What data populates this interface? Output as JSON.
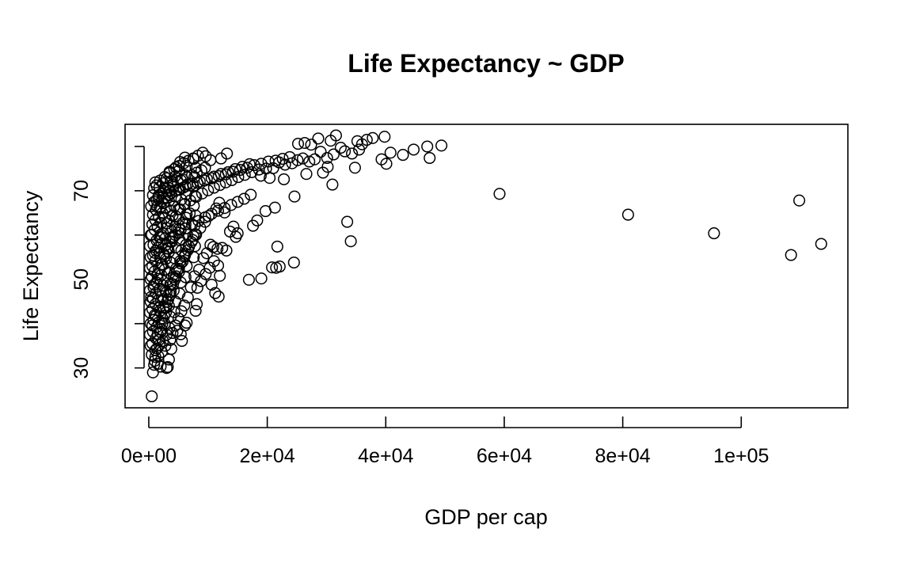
{
  "chart_data": {
    "type": "scatter",
    "title": "Life Expectancy ~ GDP",
    "xlabel": "GDP per cap",
    "ylabel": "Life Expectancy",
    "xlim": [
      -4000,
      118000
    ],
    "ylim": [
      21,
      85
    ],
    "x_ticks": [
      0,
      20000,
      40000,
      60000,
      80000,
      100000
    ],
    "x_tick_labels": [
      "0e+00",
      "2e+04",
      "4e+04",
      "6e+04",
      "8e+04",
      "1e+05"
    ],
    "y_ticks": [
      30,
      40,
      50,
      60,
      70,
      80
    ],
    "y_tick_labels": [
      "30",
      "",
      "50",
      "",
      "70",
      ""
    ],
    "grid": false,
    "legend": "none",
    "marker": "open-circle",
    "colors": {
      "point": "#000000",
      "frame": "#000000"
    },
    "points": [
      [
        59200,
        69.3
      ],
      [
        80900,
        64.6
      ],
      [
        95400,
        60.4
      ],
      [
        108400,
        55.5
      ],
      [
        109800,
        67.8
      ],
      [
        113500,
        58.0
      ],
      [
        33500,
        63.0
      ],
      [
        34100,
        58.6
      ],
      [
        24500,
        53.8
      ],
      [
        24600,
        68.7
      ],
      [
        31000,
        71.4
      ],
      [
        47000,
        80.0
      ],
      [
        47400,
        77.4
      ],
      [
        49400,
        80.2
      ],
      [
        44700,
        79.3
      ],
      [
        42900,
        78.1
      ],
      [
        40800,
        78.6
      ],
      [
        40100,
        76.1
      ],
      [
        39300,
        77.1
      ],
      [
        36000,
        80.5
      ],
      [
        35500,
        79.3
      ],
      [
        34300,
        78.4
      ],
      [
        33100,
        78.9
      ],
      [
        32400,
        79.7
      ],
      [
        31200,
        78.2
      ],
      [
        30100,
        77.4
      ],
      [
        29000,
        78.8
      ],
      [
        28000,
        77.1
      ],
      [
        27100,
        76.6
      ],
      [
        26000,
        77.3
      ],
      [
        25100,
        76.9
      ],
      [
        24200,
        76.2
      ],
      [
        23000,
        75.9
      ],
      [
        22000,
        76.4
      ],
      [
        21000,
        75.1
      ],
      [
        39800,
        82.2
      ],
      [
        37800,
        81.9
      ],
      [
        36800,
        81.5
      ],
      [
        35200,
        81.2
      ],
      [
        31600,
        82.5
      ],
      [
        30700,
        81.3
      ],
      [
        28600,
        81.8
      ],
      [
        27400,
        80.4
      ],
      [
        26300,
        80.8
      ],
      [
        25200,
        80.6
      ],
      [
        34800,
        75.2
      ],
      [
        30200,
        75.4
      ],
      [
        29400,
        74.1
      ],
      [
        26600,
        73.8
      ],
      [
        22800,
        72.6
      ],
      [
        20400,
        72.9
      ],
      [
        18900,
        73.4
      ],
      [
        21300,
        66.2
      ],
      [
        19700,
        65.4
      ],
      [
        18300,
        63.3
      ],
      [
        17600,
        62.1
      ],
      [
        21500,
        52.6
      ],
      [
        22100,
        52.9
      ],
      [
        20800,
        52.7
      ],
      [
        19000,
        50.2
      ],
      [
        16900,
        49.9
      ],
      [
        21700,
        57.4
      ],
      [
        15000,
        60.4
      ],
      [
        14700,
        59.6
      ],
      [
        14300,
        61.9
      ],
      [
        13700,
        60.8
      ],
      [
        13100,
        56.5
      ],
      [
        12400,
        57.1
      ],
      [
        11600,
        56.9
      ],
      [
        11000,
        54.1
      ],
      [
        10300,
        52.6
      ],
      [
        9600,
        51.2
      ],
      [
        8800,
        49.6
      ],
      [
        8200,
        48.1
      ],
      [
        11800,
        46.1
      ],
      [
        11200,
        46.9
      ],
      [
        10600,
        48.8
      ],
      [
        8100,
        44.4
      ],
      [
        7900,
        42.9
      ],
      [
        6400,
        40.2
      ],
      [
        6100,
        39.6
      ],
      [
        5400,
        37.6
      ],
      [
        4800,
        38.4
      ],
      [
        5600,
        36.1
      ],
      [
        3800,
        34.3
      ],
      [
        3400,
        31.9
      ],
      [
        3200,
        30.2
      ],
      [
        500,
        23.6
      ],
      [
        12000,
        50.8
      ],
      [
        11700,
        53.1
      ],
      [
        10900,
        57.3
      ],
      [
        10400,
        57.8
      ],
      [
        9800,
        55.9
      ],
      [
        9200,
        54.8
      ],
      [
        8500,
        52.2
      ],
      [
        7700,
        50.7
      ],
      [
        7100,
        48.2
      ],
      [
        6600,
        45.9
      ],
      [
        6000,
        44.1
      ],
      [
        5500,
        42.8
      ],
      [
        5000,
        41.2
      ],
      [
        4500,
        39.6
      ],
      [
        4000,
        37.9
      ],
      [
        3600,
        36.3
      ],
      [
        11400,
        66.0
      ],
      [
        11900,
        67.3
      ],
      [
        12800,
        65.1
      ],
      [
        10100,
        64.3
      ],
      [
        9500,
        63.0
      ],
      [
        8700,
        61.6
      ],
      [
        8000,
        60.1
      ],
      [
        7400,
        58.9
      ],
      [
        6800,
        57.4
      ],
      [
        6200,
        55.8
      ],
      [
        5700,
        54.0
      ],
      [
        5100,
        52.4
      ],
      [
        4600,
        50.7
      ],
      [
        4100,
        48.9
      ],
      [
        3700,
        47.2
      ],
      [
        3300,
        45.5
      ],
      [
        2900,
        43.6
      ],
      [
        2600,
        41.8
      ],
      [
        2300,
        40.0
      ],
      [
        2000,
        38.1
      ],
      [
        1700,
        36.3
      ],
      [
        1400,
        34.4
      ],
      [
        1100,
        32.5
      ],
      [
        900,
        30.7
      ],
      [
        700,
        29.0
      ],
      [
        19800,
        75.0
      ],
      [
        18600,
        74.8
      ],
      [
        17400,
        74.2
      ],
      [
        16200,
        73.6
      ],
      [
        15100,
        73.1
      ],
      [
        14000,
        72.4
      ],
      [
        13000,
        71.9
      ],
      [
        12000,
        71.3
      ],
      [
        11000,
        70.7
      ],
      [
        10000,
        70.1
      ],
      [
        9000,
        69.4
      ],
      [
        8000,
        68.6
      ],
      [
        7000,
        67.8
      ],
      [
        6000,
        66.9
      ],
      [
        5000,
        65.8
      ],
      [
        4000,
        64.4
      ],
      [
        3000,
        62.6
      ],
      [
        2000,
        60.1
      ],
      [
        1000,
        56.0
      ],
      [
        17000,
        76.0
      ],
      [
        15800,
        75.4
      ],
      [
        14600,
        74.9
      ],
      [
        13400,
        74.2
      ],
      [
        12200,
        73.8
      ],
      [
        11000,
        73.2
      ],
      [
        9800,
        72.7
      ],
      [
        8600,
        72.1
      ],
      [
        7400,
        71.6
      ],
      [
        6200,
        71.0
      ],
      [
        5000,
        70.3
      ],
      [
        3800,
        69.5
      ],
      [
        2600,
        68.2
      ],
      [
        1400,
        66.4
      ],
      [
        23800,
        77.6
      ],
      [
        22600,
        77.2
      ],
      [
        21400,
        76.8
      ],
      [
        20200,
        76.6
      ],
      [
        19000,
        76.1
      ],
      [
        17800,
        75.8
      ],
      [
        16600,
        75.2
      ],
      [
        15400,
        74.7
      ],
      [
        14200,
        74.3
      ],
      [
        13000,
        73.7
      ],
      [
        11800,
        73.3
      ],
      [
        10600,
        72.8
      ],
      [
        9400,
        72.3
      ],
      [
        8200,
        71.8
      ],
      [
        7000,
        71.2
      ],
      [
        5800,
        70.7
      ],
      [
        4600,
        70.1
      ],
      [
        3400,
        69.0
      ],
      [
        2200,
        67.6
      ],
      [
        9100,
        78.6
      ],
      [
        8300,
        77.9
      ],
      [
        7500,
        77.3
      ],
      [
        6700,
        76.8
      ],
      [
        5900,
        76.2
      ],
      [
        5100,
        75.6
      ],
      [
        4300,
        74.9
      ],
      [
        3500,
        74.0
      ],
      [
        2700,
        73.1
      ],
      [
        1900,
        72.3
      ],
      [
        1300,
        71.2
      ],
      [
        13200,
        78.4
      ],
      [
        12200,
        77.3
      ],
      [
        10400,
        76.9
      ],
      [
        9600,
        77.8
      ],
      [
        9500,
        75.2
      ],
      [
        8900,
        74.6
      ],
      [
        8100,
        74.1
      ],
      [
        7300,
        73.5
      ],
      [
        6500,
        73.0
      ],
      [
        5700,
        72.6
      ],
      [
        4900,
        72.0
      ],
      [
        4100,
        71.4
      ],
      [
        3300,
        70.7
      ],
      [
        2500,
        70.0
      ],
      [
        1700,
        69.0
      ],
      [
        900,
        67.5
      ],
      [
        17200,
        69.1
      ],
      [
        16100,
        68.2
      ],
      [
        15000,
        67.5
      ],
      [
        13900,
        66.8
      ],
      [
        12800,
        66.1
      ],
      [
        11700,
        65.5
      ],
      [
        10600,
        64.8
      ],
      [
        9500,
        64.0
      ],
      [
        8400,
        63.2
      ],
      [
        7300,
        62.4
      ],
      [
        6200,
        61.5
      ],
      [
        5100,
        60.5
      ],
      [
        4000,
        59.3
      ],
      [
        2900,
        57.8
      ],
      [
        1800,
        55.9
      ],
      [
        7800,
        60.2
      ],
      [
        7200,
        58.4
      ],
      [
        6600,
        56.6
      ],
      [
        6000,
        55.1
      ],
      [
        5400,
        53.6
      ],
      [
        4800,
        52.0
      ],
      [
        4200,
        50.5
      ],
      [
        3600,
        48.8
      ],
      [
        3000,
        47.1
      ],
      [
        2400,
        45.4
      ],
      [
        1800,
        43.6
      ],
      [
        1200,
        41.7
      ],
      [
        600,
        39.6
      ],
      [
        6900,
        64.9
      ],
      [
        6300,
        63.9
      ],
      [
        5700,
        62.7
      ],
      [
        5100,
        61.4
      ],
      [
        4500,
        60.0
      ],
      [
        3900,
        58.5
      ],
      [
        3300,
        56.9
      ],
      [
        2700,
        55.2
      ],
      [
        2100,
        53.3
      ],
      [
        1500,
        51.2
      ],
      [
        900,
        48.8
      ],
      [
        400,
        46.0
      ],
      [
        500,
        33.0
      ],
      [
        600,
        35.5
      ],
      [
        700,
        38.2
      ],
      [
        800,
        40.8
      ],
      [
        600,
        43.3
      ],
      [
        700,
        45.7
      ],
      [
        800,
        48.2
      ],
      [
        500,
        50.6
      ],
      [
        600,
        53.0
      ],
      [
        700,
        55.4
      ],
      [
        800,
        57.8
      ],
      [
        500,
        60.1
      ],
      [
        600,
        62.4
      ],
      [
        700,
        64.6
      ],
      [
        400,
        66.5
      ],
      [
        1000,
        31.6
      ],
      [
        1100,
        34.0
      ],
      [
        1200,
        36.7
      ],
      [
        1300,
        39.2
      ],
      [
        1000,
        41.9
      ],
      [
        1100,
        44.4
      ],
      [
        1200,
        46.9
      ],
      [
        1300,
        49.3
      ],
      [
        1000,
        51.8
      ],
      [
        1100,
        54.2
      ],
      [
        1200,
        56.5
      ],
      [
        1300,
        58.8
      ],
      [
        1000,
        61.2
      ],
      [
        1100,
        63.4
      ],
      [
        1200,
        65.7
      ],
      [
        1300,
        67.9
      ],
      [
        1600,
        32.7
      ],
      [
        1800,
        35.2
      ],
      [
        1500,
        37.7
      ],
      [
        1700,
        40.3
      ],
      [
        1900,
        42.9
      ],
      [
        1600,
        45.3
      ],
      [
        1800,
        47.7
      ],
      [
        1500,
        50.1
      ],
      [
        1700,
        52.5
      ],
      [
        1900,
        54.9
      ],
      [
        1600,
        57.2
      ],
      [
        1800,
        59.5
      ],
      [
        1500,
        61.8
      ],
      [
        1700,
        64.0
      ],
      [
        1900,
        66.3
      ],
      [
        1600,
        68.6
      ],
      [
        1800,
        70.8
      ],
      [
        2200,
        33.6
      ],
      [
        2400,
        36.1
      ],
      [
        2100,
        38.7
      ],
      [
        2300,
        41.2
      ],
      [
        2500,
        43.7
      ],
      [
        2200,
        46.2
      ],
      [
        2400,
        48.6
      ],
      [
        2100,
        51.0
      ],
      [
        2300,
        53.4
      ],
      [
        2500,
        55.8
      ],
      [
        2200,
        58.1
      ],
      [
        2400,
        60.4
      ],
      [
        2100,
        62.7
      ],
      [
        2300,
        65.0
      ],
      [
        2500,
        67.2
      ],
      [
        2200,
        69.5
      ],
      [
        2400,
        71.7
      ],
      [
        2800,
        35.0
      ],
      [
        3000,
        37.5
      ],
      [
        2700,
        40.0
      ],
      [
        2900,
        42.5
      ],
      [
        3100,
        45.0
      ],
      [
        2800,
        47.4
      ],
      [
        3000,
        49.8
      ],
      [
        2700,
        52.2
      ],
      [
        2900,
        54.6
      ],
      [
        3100,
        57.0
      ],
      [
        2800,
        59.3
      ],
      [
        3000,
        61.6
      ],
      [
        2700,
        63.9
      ],
      [
        2900,
        66.1
      ],
      [
        3100,
        68.4
      ],
      [
        2800,
        70.6
      ],
      [
        3000,
        72.8
      ],
      [
        3500,
        39.0
      ],
      [
        3700,
        41.5
      ],
      [
        3400,
        44.0
      ],
      [
        3600,
        46.5
      ],
      [
        3800,
        49.0
      ],
      [
        3500,
        51.4
      ],
      [
        3700,
        53.8
      ],
      [
        3400,
        56.2
      ],
      [
        3600,
        58.5
      ],
      [
        3800,
        60.9
      ],
      [
        3500,
        63.2
      ],
      [
        3700,
        65.5
      ],
      [
        3400,
        67.7
      ],
      [
        3600,
        70.0
      ],
      [
        3800,
        72.2
      ],
      [
        3500,
        74.3
      ],
      [
        4300,
        42.6
      ],
      [
        4500,
        45.0
      ],
      [
        4200,
        47.5
      ],
      [
        4400,
        50.0
      ],
      [
        4600,
        52.4
      ],
      [
        4300,
        54.8
      ],
      [
        4500,
        57.2
      ],
      [
        4200,
        59.6
      ],
      [
        4400,
        61.9
      ],
      [
        4600,
        64.2
      ],
      [
        4300,
        66.5
      ],
      [
        4500,
        68.7
      ],
      [
        4200,
        71.0
      ],
      [
        4400,
        73.2
      ],
      [
        4600,
        75.3
      ],
      [
        5200,
        46.8
      ],
      [
        5400,
        49.3
      ],
      [
        5100,
        51.7
      ],
      [
        5300,
        54.1
      ],
      [
        5500,
        56.5
      ],
      [
        5200,
        58.9
      ],
      [
        5400,
        61.2
      ],
      [
        5100,
        63.5
      ],
      [
        5300,
        65.8
      ],
      [
        5500,
        68.0
      ],
      [
        5200,
        70.2
      ],
      [
        5400,
        72.4
      ],
      [
        5100,
        74.5
      ],
      [
        5300,
        76.5
      ],
      [
        6200,
        50.5
      ],
      [
        6400,
        53.0
      ],
      [
        6100,
        55.4
      ],
      [
        6300,
        57.8
      ],
      [
        6500,
        60.1
      ],
      [
        6200,
        62.4
      ],
      [
        6400,
        64.7
      ],
      [
        6100,
        67.0
      ],
      [
        6300,
        69.2
      ],
      [
        6500,
        71.4
      ],
      [
        6200,
        73.5
      ],
      [
        6400,
        75.6
      ],
      [
        6100,
        77.5
      ],
      [
        7600,
        55.0
      ],
      [
        7800,
        57.5
      ],
      [
        7500,
        59.8
      ],
      [
        7700,
        62.1
      ],
      [
        7900,
        64.4
      ],
      [
        7600,
        66.6
      ],
      [
        7800,
        68.8
      ],
      [
        7500,
        71.0
      ],
      [
        7700,
        73.1
      ],
      [
        7900,
        75.2
      ],
      [
        7600,
        77.2
      ],
      [
        700,
        69.0
      ],
      [
        900,
        70.6
      ],
      [
        1100,
        71.9
      ],
      [
        300,
        35.0
      ],
      [
        300,
        40.0
      ],
      [
        300,
        45.0
      ],
      [
        300,
        50.0
      ],
      [
        300,
        55.0
      ],
      [
        300,
        60.0
      ],
      [
        200,
        37.5
      ],
      [
        200,
        42.5
      ],
      [
        200,
        47.5
      ],
      [
        200,
        52.5
      ],
      [
        200,
        57.5
      ],
      [
        1500,
        30.9
      ],
      [
        2000,
        30.3
      ],
      [
        3000,
        30.0
      ]
    ]
  }
}
